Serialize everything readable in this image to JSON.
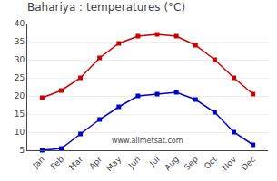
{
  "chart_data": {
    "type": "line",
    "title": "Bahariya : temperatures (°C)",
    "categories": [
      "Jan",
      "Feb",
      "Mar",
      "Apr",
      "May",
      "Jun",
      "Jul",
      "Aug",
      "Sep",
      "Oct",
      "Nov",
      "Dec"
    ],
    "series": [
      {
        "color": "#cc0000",
        "values": [
          19.5,
          21.5,
          25.0,
          30.5,
          34.5,
          36.5,
          37.0,
          36.5,
          34.0,
          30.0,
          25.0,
          20.5
        ]
      },
      {
        "color": "#0000cc",
        "values": [
          5.0,
          5.5,
          9.5,
          13.5,
          17.0,
          20.0,
          20.5,
          21.0,
          19.0,
          15.5,
          10.0,
          6.5
        ]
      }
    ],
    "ylim": [
      5,
      40
    ],
    "yticks": [
      5,
      10,
      15,
      20,
      25,
      30,
      35,
      40
    ],
    "grid": "y",
    "marker": "square",
    "annotations": [
      "www.allmetsat.com"
    ]
  }
}
